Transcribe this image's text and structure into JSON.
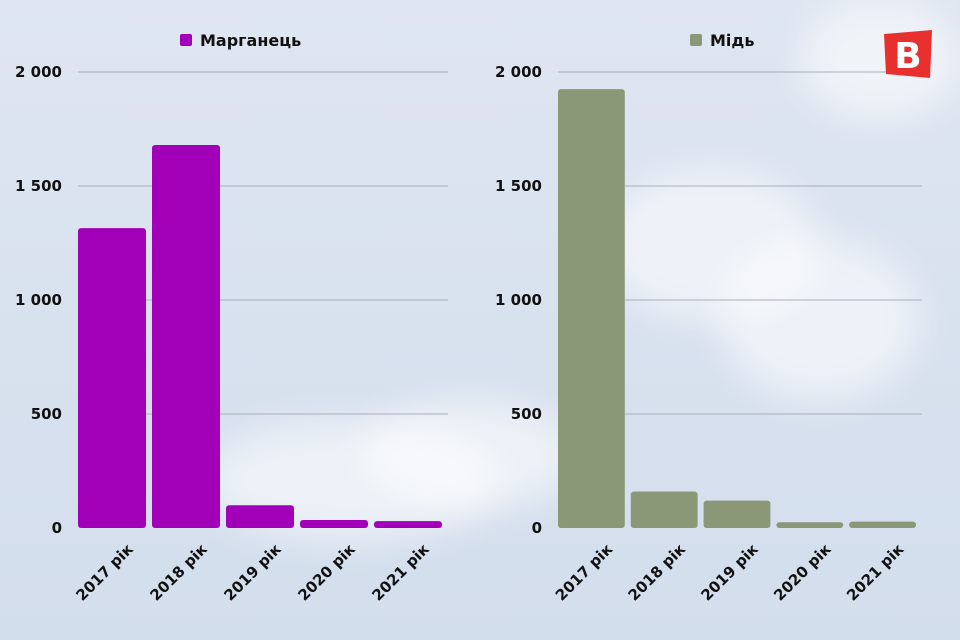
{
  "logo": {
    "letter": "B",
    "color": "#e8312f"
  },
  "chart_data": [
    {
      "type": "bar",
      "categories": [
        "2017 рік",
        "2018 рік",
        "2019 рік",
        "2020 рік",
        "2021 рік"
      ],
      "series": [
        {
          "name": "Марганець",
          "values": [
            1315,
            1680,
            100,
            35,
            30
          ]
        }
      ],
      "color": "#a100b8",
      "ylim": [
        0,
        2000
      ],
      "yticks": [
        0,
        500,
        1000,
        1500,
        2000
      ],
      "ytick_labels": [
        "0",
        "500",
        "1 000",
        "1 500",
        "2 000"
      ],
      "legend": "top-center",
      "grid": true
    },
    {
      "type": "bar",
      "categories": [
        "2017 рік",
        "2018 рік",
        "2019 рік",
        "2020 рік",
        "2021 рік"
      ],
      "series": [
        {
          "name": "Мідь",
          "values": [
            1925,
            160,
            120,
            25,
            28
          ]
        }
      ],
      "color": "#8a9878",
      "ylim": [
        0,
        2000
      ],
      "yticks": [
        0,
        500,
        1000,
        1500,
        2000
      ],
      "ytick_labels": [
        "0",
        "500",
        "1 000",
        "1 500",
        "2 000"
      ],
      "legend": "top-center",
      "grid": true
    }
  ]
}
